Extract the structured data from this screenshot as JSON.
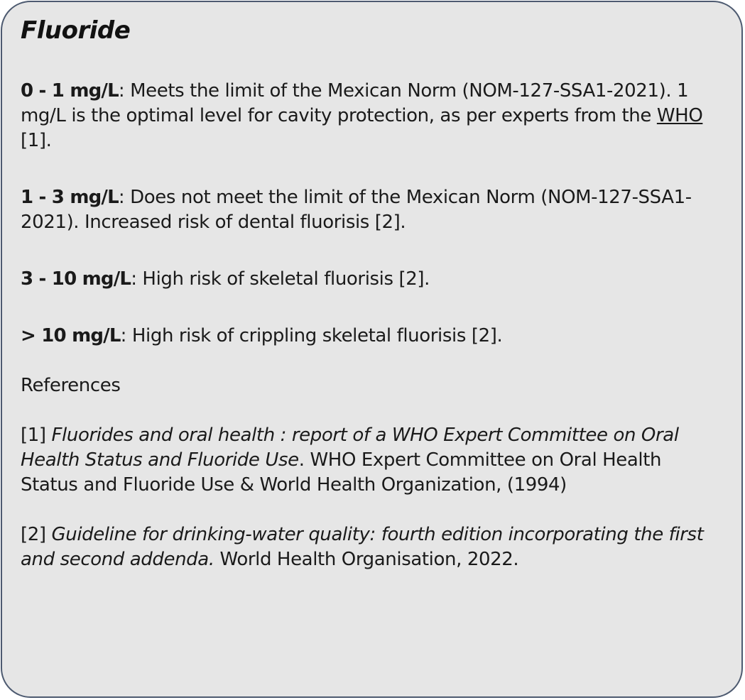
{
  "title": "Fluoride",
  "ranges": [
    {
      "value": "0 - 1 mg/L",
      "text_before_link": ": Meets the limit of the Mexican Norm (NOM-127-SSA1-2021). 1 mg/L is the optimal level for cavity protection, as per experts from the ",
      "link": "WHO",
      "text_after_link": " [1]."
    },
    {
      "value": "1 - 3 mg/L",
      "text": ": Does not meet the limit of the Mexican Norm (NOM-127-SSA1-2021). Increased risk of dental fluorisis [2]."
    },
    {
      "value": "3 - 10 mg/L",
      "text": ": High risk of skeletal fluorisis [2]."
    },
    {
      "value": "> 10 mg/L",
      "text": ": High risk of crippling skeletal fluorisis [2]."
    }
  ],
  "references_heading": "References",
  "references": [
    {
      "marker": "[1] ",
      "title": "Fluorides and oral health : report of a WHO Expert Committee on Oral Health Status and Fluoride Use",
      "rest": ". WHO Expert Committee on Oral Health Status and Fluoride Use & World Health Organization, (1994)"
    },
    {
      "marker": "[2] ",
      "title": "Guideline for drinking-water quality: fourth edition incorporating the first and second addenda.",
      "rest": " World Health Organisation, 2022."
    }
  ],
  "colors": {
    "card_background": "#e6e6e6",
    "card_border": "#4d5a70",
    "text": "#1a1a1a"
  }
}
